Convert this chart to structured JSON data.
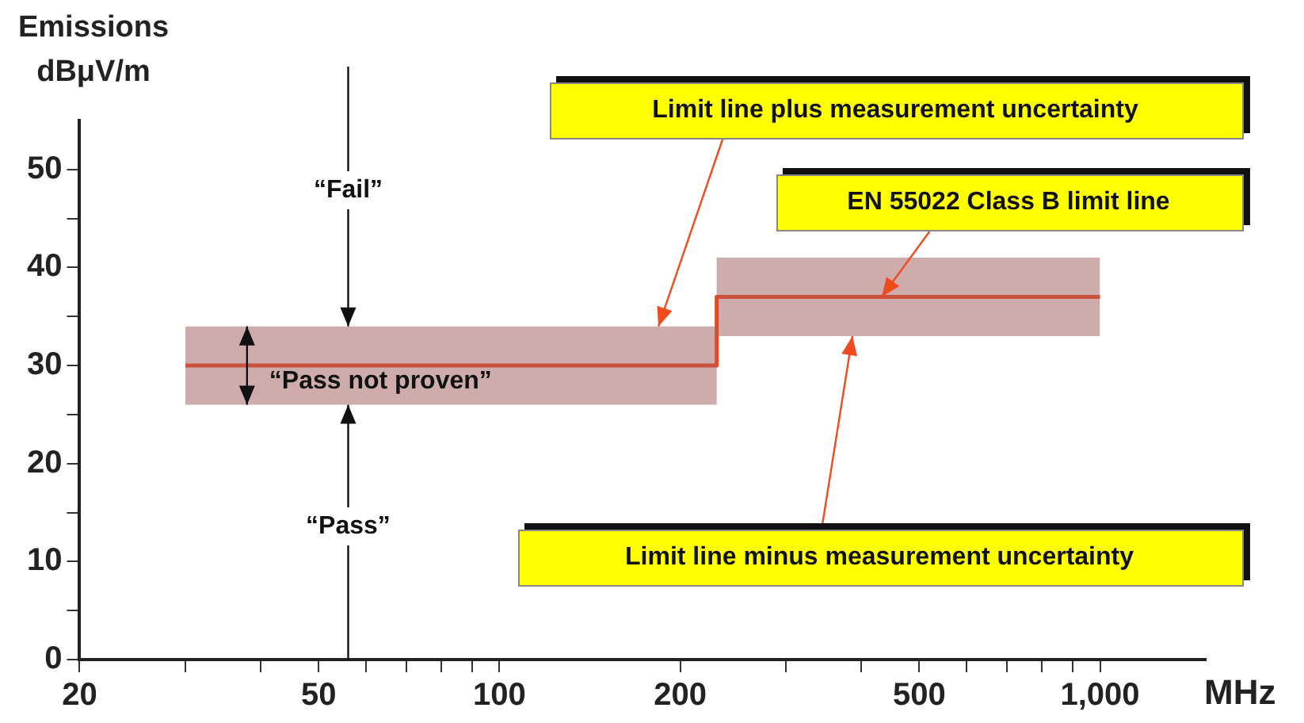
{
  "chart_data": {
    "type": "line",
    "ylabel": "Emissions dBμV/m",
    "xlabel": "MHz",
    "log": "x",
    "xlim": [
      20,
      1500
    ],
    "ylim": [
      0,
      55
    ],
    "xticks": [
      20,
      {
        "value": 30,
        "label": null
      },
      {
        "value": 40,
        "label": null
      },
      50,
      {
        "value": 60,
        "label": null
      },
      {
        "value": 70,
        "label": null
      },
      {
        "value": 80,
        "label": null
      },
      {
        "value": 90,
        "label": null
      },
      100,
      200,
      {
        "value": 300,
        "label": null
      },
      {
        "value": 400,
        "label": null
      },
      500,
      {
        "value": 600,
        "label": null
      },
      {
        "value": 700,
        "label": null
      },
      {
        "value": 800,
        "label": null
      },
      {
        "value": 900,
        "label": null
      },
      {
        "value": 1000,
        "label": "1,000"
      }
    ],
    "yticks": [
      0,
      {
        "value": 5,
        "label": null
      },
      10,
      {
        "value": 15,
        "label": null
      },
      20,
      {
        "value": 25,
        "label": null
      },
      30,
      {
        "value": 35,
        "label": null
      },
      40,
      {
        "value": 45,
        "label": null
      },
      50
    ],
    "grid": false,
    "legend": false,
    "marker": "none",
    "series": [
      {
        "color": "#f04a1f",
        "x": [
          30,
          230,
          230,
          1000
        ],
        "values": [
          30,
          30,
          37,
          37
        ],
        "lower": [
          26,
          26,
          33,
          33
        ],
        "upper": [
          34,
          34,
          41,
          41
        ]
      }
    ],
    "annotations": [
      {
        "text": "“Fail”",
        "x": 56,
        "y": 34
      },
      {
        "text": "“Pass not proven”",
        "x": 38,
        "y": 30
      },
      {
        "text": "“Pass”",
        "x": 56,
        "y": 26
      },
      {
        "text": "Limit line plus measurement uncertainty",
        "x": 184,
        "y": 34
      },
      {
        "text": "EN 55022 Class B limit line",
        "x": 433,
        "y": 37
      },
      {
        "text": "Limit line minus measurement uncertainty",
        "x": 387,
        "y": 33
      }
    ]
  }
}
